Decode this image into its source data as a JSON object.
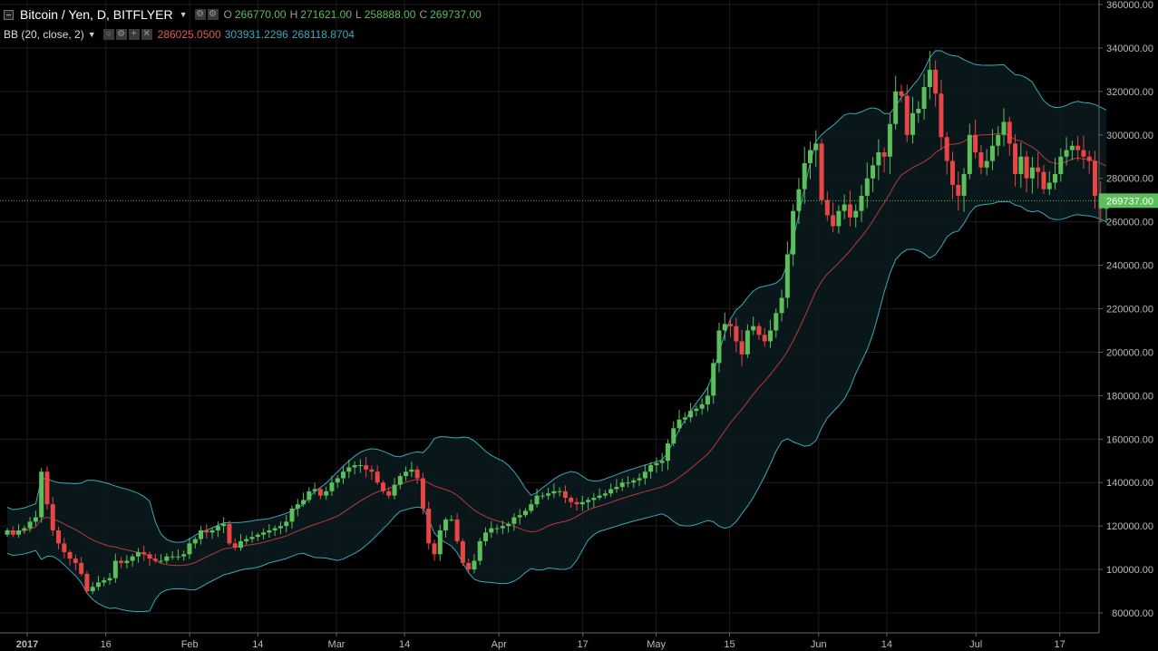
{
  "header": {
    "title": "Bitcoin / Yen, D, BITFLYER",
    "ohlc": {
      "o_label": "O",
      "o": "266770.00",
      "h_label": "H",
      "h": "271621.00",
      "l_label": "L",
      "l": "258888.00",
      "c_label": "C",
      "c": "269737.00"
    },
    "indicator": {
      "name": "BB (20, close, 2)",
      "basis": "286025.0500",
      "upper": "303931.2296",
      "lower": "268118.8704"
    }
  },
  "price_label": "269737.00",
  "colors": {
    "background": "#000000",
    "grid": "#1c1c1c",
    "up": "#5bbf5b",
    "down": "#e84545",
    "bb_basis": "#b83a3a",
    "bb_band": "#3aa8b8",
    "last_price": "#5bbf5b"
  },
  "chart_data": {
    "type": "candlestick",
    "ylim": [
      75000,
      360000
    ],
    "y_ticks": [
      "80000.00",
      "100000.00",
      "120000.00",
      "140000.00",
      "160000.00",
      "180000.00",
      "200000.00",
      "220000.00",
      "240000.00",
      "260000.00",
      "280000.00",
      "300000.00",
      "320000.00",
      "340000.00",
      "360000.00"
    ],
    "x_ticks": [
      {
        "label": "2017",
        "date": "2017-01-01"
      },
      {
        "label": "16",
        "date": "2017-01-16"
      },
      {
        "label": "Feb",
        "date": "2017-02-01"
      },
      {
        "label": "14",
        "date": "2017-02-14"
      },
      {
        "label": "Mar",
        "date": "2017-03-01"
      },
      {
        "label": "14",
        "date": "2017-03-14"
      },
      {
        "label": "Apr",
        "date": "2017-04-01"
      },
      {
        "label": "17",
        "date": "2017-04-17"
      },
      {
        "label": "May",
        "date": "2017-05-01"
      },
      {
        "label": "15",
        "date": "2017-05-15"
      },
      {
        "label": "Jun",
        "date": "2017-06-01"
      },
      {
        "label": "14",
        "date": "2017-06-14"
      },
      {
        "label": "Jul",
        "date": "2017-07-01"
      },
      {
        "label": "17",
        "date": "2017-07-17"
      }
    ],
    "last_price": 269737,
    "close_series": [
      118000,
      116000,
      118000,
      119000,
      122000,
      124000,
      145000,
      130000,
      118000,
      112000,
      108000,
      105000,
      103000,
      98000,
      90000,
      92000,
      94000,
      95000,
      96000,
      104000,
      103000,
      104000,
      106000,
      108000,
      107000,
      105000,
      104000,
      104000,
      106000,
      106000,
      106000,
      107000,
      112000,
      114000,
      118000,
      117000,
      118000,
      120000,
      121000,
      112000,
      110000,
      113000,
      114000,
      115000,
      116000,
      117000,
      118000,
      119000,
      120000,
      122000,
      128000,
      130000,
      132000,
      136000,
      137000,
      134000,
      136000,
      140000,
      142000,
      145000,
      147000,
      148000,
      148000,
      146000,
      145000,
      140000,
      136000,
      134000,
      139000,
      143000,
      145000,
      146000,
      142000,
      128000,
      112000,
      107000,
      118000,
      123000,
      123000,
      113000,
      103000,
      100000,
      104000,
      113000,
      117000,
      119000,
      119000,
      120000,
      121000,
      124000,
      125000,
      127000,
      130000,
      134000,
      134000,
      135000,
      136000,
      136000,
      133000,
      131000,
      130000,
      131000,
      132000,
      133000,
      134000,
      135000,
      137000,
      138000,
      140000,
      140000,
      141000,
      142000,
      145000,
      148000,
      149000,
      150000,
      158000,
      165000,
      169000,
      170000,
      173000,
      174000,
      176000,
      180000,
      195000,
      210000,
      213000,
      212000,
      205000,
      199000,
      210000,
      212000,
      208000,
      205000,
      210000,
      218000,
      225000,
      245000,
      265000,
      275000,
      287000,
      293000,
      296000,
      270000,
      263000,
      258000,
      265000,
      268000,
      262000,
      265000,
      272000,
      280000,
      286000,
      292000,
      290000,
      305000,
      320000,
      318000,
      300000,
      310000,
      312000,
      322000,
      330000,
      319000,
      299000,
      288000,
      277000,
      272000,
      282000,
      300000,
      292000,
      285000,
      288000,
      295000,
      300000,
      306000,
      296000,
      282000,
      290000,
      280000,
      285000,
      283000,
      275000,
      278000,
      282000,
      290000,
      293000,
      295000,
      293000,
      290000,
      288000,
      272000,
      266000,
      270000
    ]
  }
}
